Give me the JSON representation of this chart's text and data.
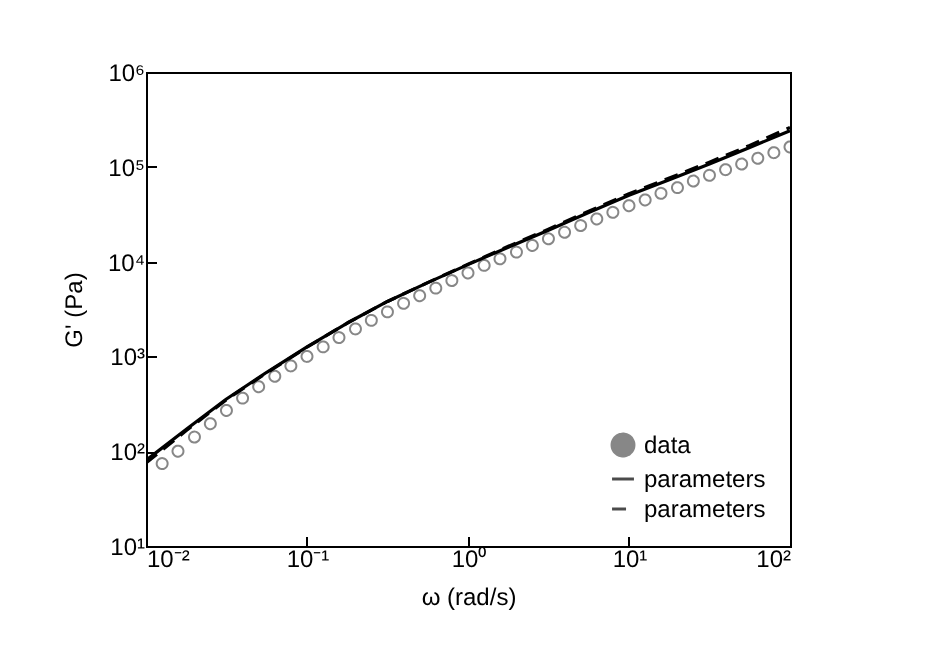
{
  "chart_data": {
    "type": "scatter",
    "xlabel": "ω (rad/s)",
    "ylabel": "G' (Pa)",
    "log": "xy",
    "xlim": [
      0.01,
      100
    ],
    "ylim": [
      10,
      1000000
    ],
    "xticks": [
      {
        "value": 0.01,
        "label": "10⁻²"
      },
      {
        "value": 0.1,
        "label": "10⁻¹"
      },
      {
        "value": 1,
        "label": "10⁰"
      },
      {
        "value": 10,
        "label": "10¹"
      },
      {
        "value": 100,
        "label": "10²"
      }
    ],
    "yticks": [
      {
        "value": 10,
        "label": "10¹"
      },
      {
        "value": 100,
        "label": "10²"
      },
      {
        "value": 1000,
        "label": "10³"
      },
      {
        "value": 10000,
        "label": "10⁴"
      },
      {
        "value": 100000,
        "label": "10⁵"
      },
      {
        "value": 1000000,
        "label": "10⁶"
      }
    ],
    "grid": false,
    "legend": "bottom right",
    "series": [
      {
        "name": "data",
        "marker": "circle",
        "color": "#555555",
        "x": [
          0.0126,
          0.0158,
          0.02,
          0.0251,
          0.0316,
          0.0398,
          0.0501,
          0.0631,
          0.0794,
          0.1,
          0.126,
          0.158,
          0.2,
          0.251,
          0.316,
          0.398,
          0.501,
          0.631,
          0.794,
          1,
          1.26,
          1.58,
          2,
          2.51,
          3.16,
          3.98,
          5.01,
          6.31,
          7.94,
          10,
          12.6,
          15.8,
          20,
          25.1,
          31.6,
          39.8,
          50.1,
          63.1,
          79.4,
          100
        ],
        "values": [
          74,
          100,
          141,
          195,
          269,
          363,
          479,
          617,
          794,
          1000,
          1260,
          1580,
          1950,
          2400,
          2950,
          3630,
          4370,
          5250,
          6310,
          7590,
          9120,
          10700,
          12600,
          14800,
          17400,
          20400,
          24000,
          28200,
          33100,
          38900,
          44700,
          52500,
          60300,
          70800,
          81300,
          93300,
          107000,
          123000,
          141000,
          162000
        ]
      },
      {
        "name": "parameters",
        "type": "line",
        "line_style": "solid",
        "color": "#000000",
        "x": [
          0.01,
          0.0178,
          0.0316,
          0.0562,
          0.1,
          0.178,
          0.316,
          0.562,
          1,
          1.78,
          3.16,
          5.62,
          10,
          17.8,
          31.6,
          56.2,
          100
        ],
        "values": [
          80,
          170,
          355,
          680,
          1260,
          2250,
          3800,
          6000,
          9300,
          14200,
          21400,
          33000,
          50000,
          73000,
          107000,
          160000,
          240000
        ]
      },
      {
        "name": "parameters",
        "type": "line",
        "line_style": "dashed",
        "color": "#000000",
        "x": [
          0.01,
          0.0178,
          0.0316,
          0.0562,
          0.1,
          0.178,
          0.316,
          0.562,
          1,
          1.78,
          3.16,
          5.62,
          10,
          17.8,
          31.6,
          56.2,
          100
        ],
        "values": [
          75,
          165,
          350,
          670,
          1250,
          2250,
          3800,
          6000,
          9400,
          14500,
          22000,
          34000,
          52000,
          76000,
          112000,
          168000,
          260000
        ]
      }
    ]
  }
}
